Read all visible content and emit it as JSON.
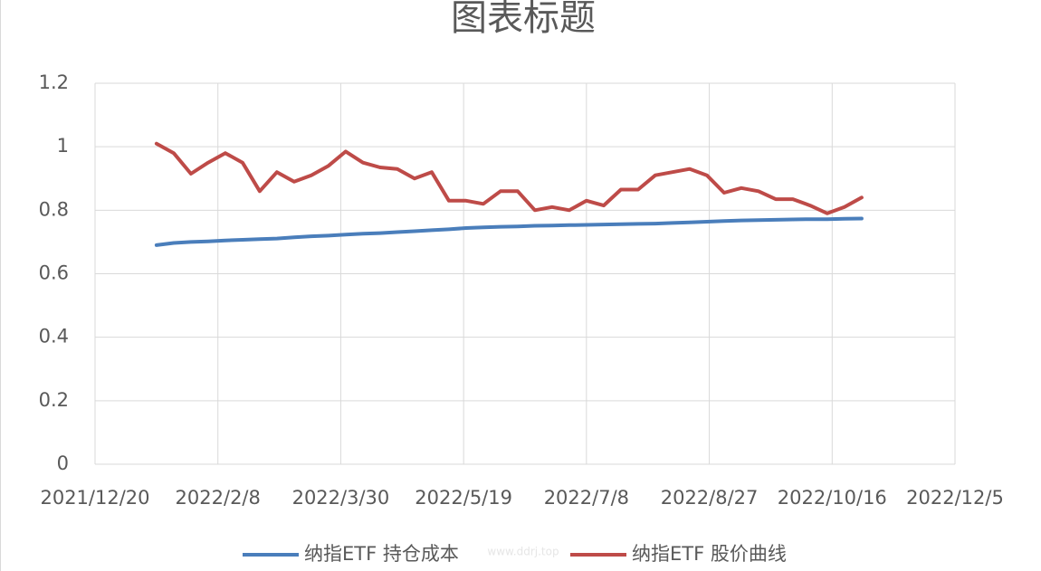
{
  "chart_data": {
    "type": "line",
    "title": "图表标题",
    "x": [
      "2022/1/14",
      "2022/1/21",
      "2022/1/28",
      "2022/2/4",
      "2022/2/11",
      "2022/2/18",
      "2022/2/25",
      "2022/3/4",
      "2022/3/11",
      "2022/3/18",
      "2022/3/25",
      "2022/4/1",
      "2022/4/8",
      "2022/4/15",
      "2022/4/22",
      "2022/4/29",
      "2022/5/6",
      "2022/5/13",
      "2022/5/20",
      "2022/5/27",
      "2022/6/3",
      "2022/6/10",
      "2022/6/17",
      "2022/6/24",
      "2022/7/1",
      "2022/7/8",
      "2022/7/15",
      "2022/7/22",
      "2022/7/29",
      "2022/8/5",
      "2022/8/12",
      "2022/8/19",
      "2022/8/26",
      "2022/9/2",
      "2022/9/9",
      "2022/9/16",
      "2022/9/23",
      "2022/9/30",
      "2022/10/7",
      "2022/10/14",
      "2022/10/21",
      "2022/10/28"
    ],
    "series": [
      {
        "name": "纳指ETF 持仓成本",
        "color": "#4a7ebb",
        "values": [
          0.69,
          0.697,
          0.7,
          0.702,
          0.705,
          0.707,
          0.709,
          0.711,
          0.715,
          0.718,
          0.72,
          0.723,
          0.726,
          0.728,
          0.731,
          0.734,
          0.737,
          0.74,
          0.744,
          0.746,
          0.748,
          0.749,
          0.751,
          0.752,
          0.753,
          0.754,
          0.755,
          0.756,
          0.757,
          0.758,
          0.76,
          0.762,
          0.764,
          0.766,
          0.768,
          0.769,
          0.77,
          0.771,
          0.772,
          0.772,
          0.773,
          0.774
        ]
      },
      {
        "name": "纳指ETF 股价曲线",
        "color": "#be4b48",
        "values": [
          1.01,
          0.98,
          0.915,
          0.95,
          0.98,
          0.95,
          0.86,
          0.92,
          0.89,
          0.91,
          0.94,
          0.985,
          0.95,
          0.935,
          0.93,
          0.9,
          0.92,
          0.83,
          0.83,
          0.82,
          0.86,
          0.86,
          0.8,
          0.81,
          0.8,
          0.83,
          0.815,
          0.865,
          0.865,
          0.91,
          0.92,
          0.93,
          0.91,
          0.855,
          0.87,
          0.86,
          0.835,
          0.835,
          0.815,
          0.79,
          0.81,
          0.84
        ]
      }
    ],
    "xlim": [
      "2021/12/20",
      "2022/12/5"
    ],
    "xticks": [
      "2021/12/20",
      "2022/2/8",
      "2022/3/30",
      "2022/5/19",
      "2022/7/8",
      "2022/8/27",
      "2022/10/16",
      "2022/12/5"
    ],
    "ylim": [
      0,
      1.2
    ],
    "yticks": [
      0,
      0.2,
      0.4,
      0.6,
      0.8,
      1,
      1.2
    ],
    "grid": true,
    "legend": "bottom",
    "watermark": "www.ddrj.top"
  }
}
